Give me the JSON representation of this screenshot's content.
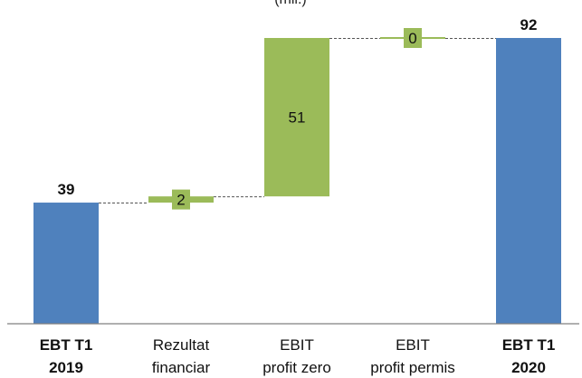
{
  "chart_data": {
    "type": "bar",
    "subtype": "waterfall",
    "title": "(mil.)",
    "categories": [
      [
        "EBT T1",
        "2019"
      ],
      [
        "Rezultat",
        "financiar"
      ],
      [
        "EBIT",
        "profit zero"
      ],
      [
        "EBIT",
        "profit permis"
      ],
      [
        "EBT T1",
        "2020"
      ]
    ],
    "bold_categories": [
      true,
      false,
      false,
      false,
      true
    ],
    "bars": [
      {
        "kind": "total",
        "start": 0,
        "end": 39,
        "label": "39"
      },
      {
        "kind": "delta",
        "start": 39,
        "end": 41,
        "label": "2"
      },
      {
        "kind": "delta",
        "start": 41,
        "end": 92,
        "label": "51"
      },
      {
        "kind": "delta",
        "start": 92,
        "end": 92,
        "label": "0"
      },
      {
        "kind": "total",
        "start": 0,
        "end": 92,
        "label": "92"
      }
    ],
    "ylim": [
      0,
      92
    ],
    "grid": false,
    "legend": "none",
    "colors": {
      "total": "#4f81bd",
      "delta": "#9bbb59",
      "connector": "#555555",
      "axis": "#808080"
    }
  }
}
